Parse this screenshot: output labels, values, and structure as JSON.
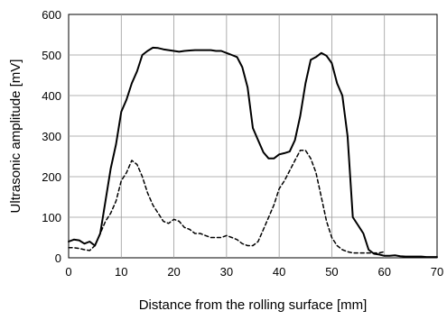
{
  "chart_data": {
    "type": "line",
    "title": "",
    "xlabel": "Distance from the rolling surface [mm]",
    "ylabel": "Ultrasonic amplitude [mV]",
    "xlim": [
      0,
      70
    ],
    "ylim": [
      0,
      600
    ],
    "xticks": [
      0,
      10,
      20,
      30,
      40,
      50,
      60,
      70
    ],
    "yticks": [
      0,
      100,
      200,
      300,
      400,
      500,
      600
    ],
    "grid": true,
    "legend": "none",
    "series": [
      {
        "style": "solid",
        "color": "#000000",
        "x": [
          0,
          1,
          2,
          3,
          4,
          5,
          6,
          7,
          8,
          9,
          10,
          11,
          12,
          13,
          14,
          15,
          16,
          17,
          18,
          19,
          20,
          21,
          22,
          23,
          24,
          25,
          26,
          27,
          28,
          29,
          30,
          31,
          32,
          33,
          34,
          35,
          36,
          37,
          38,
          39,
          40,
          41,
          42,
          43,
          44,
          45,
          46,
          47,
          48,
          49,
          50,
          51,
          52,
          53,
          54,
          55,
          56,
          57,
          58,
          59,
          60,
          61,
          62,
          63,
          64,
          65,
          66,
          67,
          68,
          69,
          70
        ],
        "y": [
          40,
          45,
          43,
          35,
          40,
          30,
          60,
          140,
          220,
          280,
          360,
          390,
          430,
          460,
          500,
          510,
          518,
          517,
          514,
          512,
          510,
          508,
          510,
          511,
          512,
          512,
          512,
          512,
          510,
          510,
          505,
          500,
          495,
          470,
          420,
          320,
          290,
          260,
          245,
          245,
          255,
          258,
          262,
          290,
          350,
          430,
          488,
          495,
          505,
          498,
          480,
          430,
          400,
          300,
          100,
          80,
          60,
          20,
          10,
          8,
          5,
          5,
          6,
          4,
          3,
          3,
          3,
          3,
          2,
          2,
          2
        ]
      },
      {
        "style": "dashed",
        "color": "#000000",
        "x": [
          0,
          1,
          2,
          3,
          4,
          5,
          6,
          7,
          8,
          9,
          10,
          11,
          12,
          13,
          14,
          15,
          16,
          17,
          18,
          19,
          20,
          21,
          22,
          23,
          24,
          25,
          26,
          27,
          28,
          29,
          30,
          31,
          32,
          33,
          34,
          35,
          36,
          37,
          38,
          39,
          40,
          41,
          42,
          43,
          44,
          45,
          46,
          47,
          48,
          49,
          50,
          51,
          52,
          53,
          54,
          55,
          56,
          57,
          58,
          59,
          60
        ],
        "y": [
          25,
          25,
          23,
          20,
          18,
          30,
          60,
          90,
          110,
          140,
          190,
          210,
          240,
          230,
          200,
          160,
          130,
          110,
          90,
          85,
          95,
          90,
          75,
          70,
          60,
          60,
          55,
          50,
          50,
          50,
          55,
          50,
          45,
          35,
          30,
          30,
          40,
          70,
          100,
          130,
          170,
          190,
          215,
          240,
          265,
          265,
          245,
          210,
          150,
          90,
          50,
          30,
          20,
          15,
          12,
          12,
          12,
          12,
          12,
          12,
          15
        ]
      }
    ]
  }
}
